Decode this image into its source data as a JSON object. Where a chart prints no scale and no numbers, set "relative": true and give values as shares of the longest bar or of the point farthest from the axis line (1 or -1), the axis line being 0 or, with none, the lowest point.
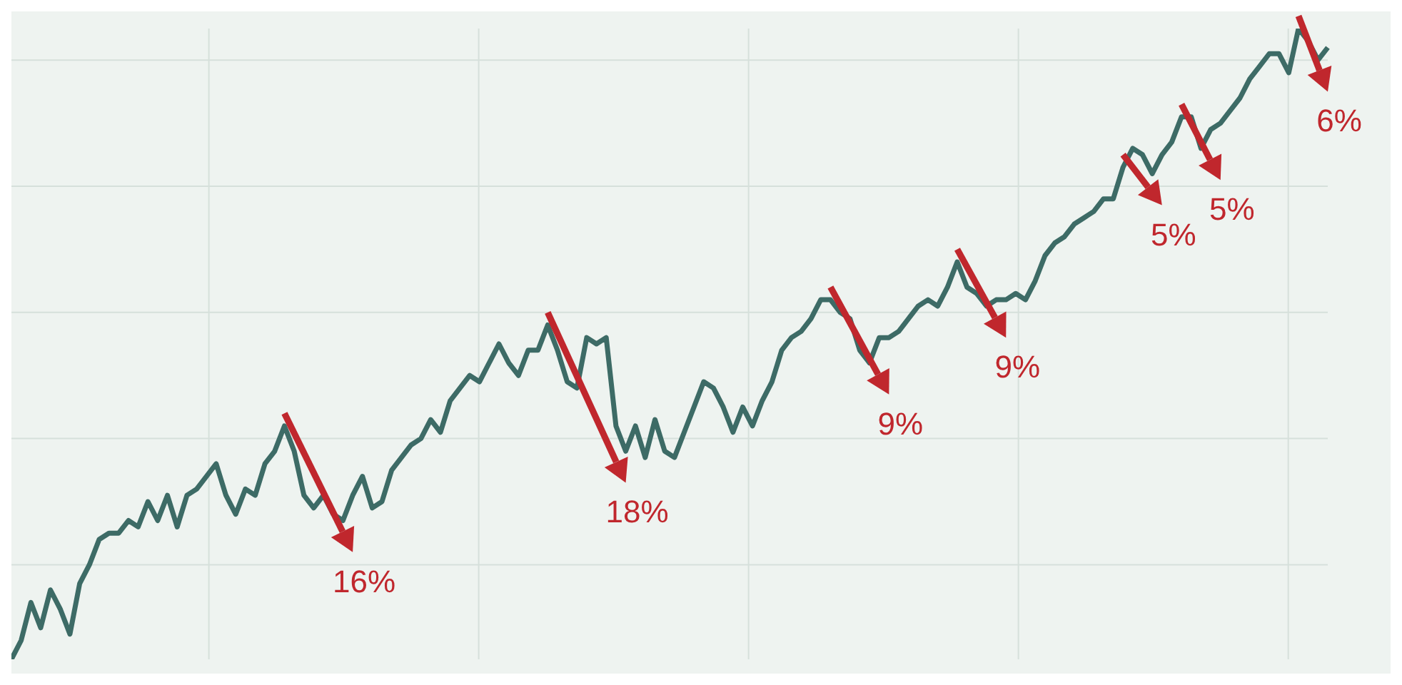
{
  "chart_data": {
    "type": "line",
    "relative": true,
    "grid": true,
    "categories": [
      null,
      null,
      null,
      null,
      null,
      null,
      null,
      null,
      null,
      null,
      null,
      null,
      null,
      null,
      null,
      null,
      null,
      null,
      null,
      null,
      null,
      null,
      null,
      null,
      null,
      null,
      null,
      null,
      null,
      null,
      null,
      null,
      null,
      null,
      null,
      null,
      null,
      null,
      null,
      null,
      null,
      null,
      null,
      null,
      null,
      null,
      null,
      null,
      null,
      null,
      null,
      null,
      null,
      null,
      null,
      null,
      null,
      null,
      null,
      null,
      null,
      null,
      null,
      null,
      null,
      null,
      null,
      null,
      null,
      null,
      null,
      null,
      null,
      null,
      null,
      null,
      null,
      null,
      null,
      null,
      null,
      null,
      null,
      null,
      null,
      null,
      null,
      null,
      null,
      null,
      null,
      null,
      null,
      null,
      null,
      null,
      null,
      null,
      null,
      null,
      null,
      null,
      null,
      null,
      null,
      null,
      null,
      null,
      null,
      null,
      null,
      null,
      null,
      null,
      null,
      null,
      null,
      null,
      null,
      null,
      null,
      null,
      null,
      null,
      null,
      null,
      null,
      null,
      null,
      null,
      null,
      null,
      null,
      null,
      null,
      null
    ],
    "series": [
      {
        "color": "#3d6b66",
        "values": [
          0,
          0.03,
          0.09,
          0.05,
          0.11,
          0.08,
          0.04,
          0.12,
          0.15,
          0.19,
          0.2,
          0.2,
          0.22,
          0.21,
          0.25,
          0.22,
          0.26,
          0.21,
          0.26,
          0.27,
          0.29,
          0.31,
          0.26,
          0.23,
          0.27,
          0.26,
          0.31,
          0.33,
          0.37,
          0.33,
          0.26,
          0.24,
          0.26,
          0.23,
          0.22,
          0.26,
          0.29,
          0.24,
          0.25,
          0.3,
          0.32,
          0.34,
          0.35,
          0.38,
          0.36,
          0.41,
          0.43,
          0.45,
          0.44,
          0.47,
          0.5,
          0.47,
          0.45,
          0.49,
          0.49,
          0.53,
          0.49,
          0.44,
          0.43,
          0.51,
          0.5,
          0.51,
          0.37,
          0.33,
          0.37,
          0.32,
          0.38,
          0.33,
          0.32,
          0.36,
          0.4,
          0.44,
          0.43,
          0.4,
          0.36,
          0.4,
          0.37,
          0.41,
          0.44,
          0.49,
          0.51,
          0.52,
          0.54,
          0.57,
          0.57,
          0.55,
          0.54,
          0.49,
          0.47,
          0.51,
          0.51,
          0.52,
          0.54,
          0.56,
          0.57,
          0.56,
          0.59,
          0.63,
          0.59,
          0.58,
          0.56,
          0.57,
          0.57,
          0.58,
          0.57,
          0.6,
          0.64,
          0.66,
          0.67,
          0.69,
          0.7,
          0.71,
          0.73,
          0.73,
          0.78,
          0.81,
          0.8,
          0.77,
          0.8,
          0.82,
          0.86,
          0.86,
          0.81,
          0.84,
          0.85,
          0.87,
          0.89,
          0.92,
          0.94,
          0.96,
          0.96,
          0.93,
          1,
          0.98,
          0.95,
          0.97
        ]
      }
    ],
    "annotations": [
      "16%",
      "18%",
      "9%",
      "9%",
      "5%",
      "5%",
      "6%"
    ]
  }
}
